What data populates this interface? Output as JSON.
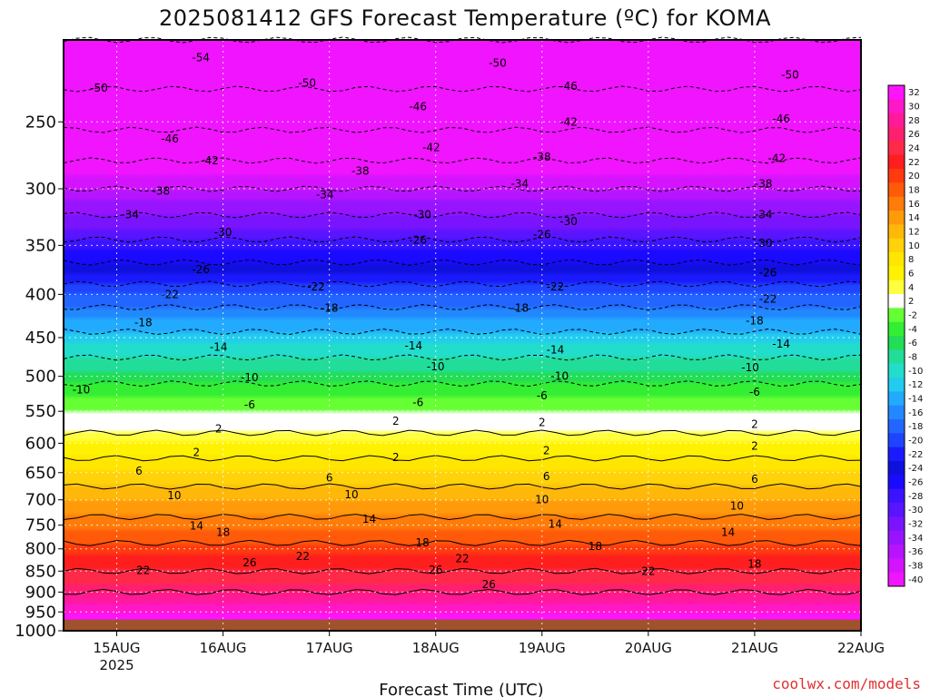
{
  "title": "2025081412 GFS Forecast Temperature (ºC) for KOMA",
  "credit": "coolwx.com/models",
  "chart_data": {
    "type": "heatmap",
    "xlabel": "Forecast Time (UTC)",
    "ylabel": "",
    "x_start": "2025-08-14 12Z",
    "x_end": "2025-08-22 00Z",
    "x_ticks": [
      {
        "label": "15AUG",
        "sub": "2025",
        "t": "2025-08-15 00Z"
      },
      {
        "label": "16AUG",
        "sub": "",
        "t": "2025-08-16 00Z"
      },
      {
        "label": "17AUG",
        "sub": "",
        "t": "2025-08-17 00Z"
      },
      {
        "label": "18AUG",
        "sub": "",
        "t": "2025-08-18 00Z"
      },
      {
        "label": "19AUG",
        "sub": "",
        "t": "2025-08-19 00Z"
      },
      {
        "label": "20AUG",
        "sub": "",
        "t": "2025-08-20 00Z"
      },
      {
        "label": "21AUG",
        "sub": "",
        "t": "2025-08-21 00Z"
      },
      {
        "label": "22AUG",
        "sub": "",
        "t": "2025-08-22 00Z"
      }
    ],
    "y_ticks_hpa": [
      "250",
      "300",
      "350",
      "400",
      "450",
      "500",
      "550",
      "600",
      "650",
      "700",
      "750",
      "800",
      "850",
      "900",
      "950",
      "1000"
    ],
    "ylim_hpa": [
      1000,
      200
    ],
    "ground_level_hpa": 970,
    "profile_hpa": [
      200,
      250,
      300,
      350,
      400,
      450,
      500,
      550,
      600,
      650,
      700,
      750,
      800,
      850,
      900,
      950,
      970
    ],
    "profile_temp_c": [
      -54,
      -47,
      -38,
      -29,
      -20,
      -13,
      -7,
      -2,
      4,
      8,
      12,
      15,
      19,
      22,
      26,
      30,
      32
    ],
    "colorbar": {
      "levels": [
        "32",
        "30",
        "28",
        "26",
        "24",
        "22",
        "20",
        "18",
        "16",
        "14",
        "12",
        "10",
        "8",
        "6",
        "4",
        "2",
        "-2",
        "-4",
        "-6",
        "-8",
        "-10",
        "-12",
        "-14",
        "-16",
        "-18",
        "-20",
        "-22",
        "-24",
        "-26",
        "-28",
        "-30",
        "-32",
        "-34",
        "-36",
        "-38",
        "-40"
      ],
      "colors": [
        "#ff14ff",
        "#ff17c8",
        "#ff1a9a",
        "#ff1f6f",
        "#ff2a48",
        "#ff1e1e",
        "#ff3a0f",
        "#ff5a0a",
        "#ff7b0a",
        "#ff9a0a",
        "#ffb80a",
        "#ffd20a",
        "#ffe600",
        "#fff200",
        "#ffff40",
        "#ffffff",
        "#66ff33",
        "#33ee33",
        "#22dd55",
        "#22dd99",
        "#22ddcc",
        "#22ccee",
        "#22aaff",
        "#2288ff",
        "#2266ff",
        "#1f44ff",
        "#1a1aff",
        "#1010dd",
        "#1a0aff",
        "#3b14ff",
        "#5a14ff",
        "#7a14ff",
        "#9814ff",
        "#b614ff",
        "#d414ff",
        "#f014ff"
      ]
    },
    "contour_labels": [
      {
        "text": "-54",
        "t": "2025-08-15 19Z",
        "p": 210
      },
      {
        "text": "-50",
        "t": "2025-08-14 20Z",
        "p": 228
      },
      {
        "text": "-50",
        "t": "2025-08-16 19Z",
        "p": 225
      },
      {
        "text": "-50",
        "t": "2025-08-18 14Z",
        "p": 213
      },
      {
        "text": "-50",
        "t": "2025-08-21 08Z",
        "p": 220
      },
      {
        "text": "-46",
        "t": "2025-08-17 20Z",
        "p": 240
      },
      {
        "text": "-46",
        "t": "2025-08-15 12Z",
        "p": 262
      },
      {
        "text": "-46",
        "t": "2025-08-19 06Z",
        "p": 227
      },
      {
        "text": "-46",
        "t": "2025-08-21 06Z",
        "p": 248
      },
      {
        "text": "-42",
        "t": "2025-08-15 21Z",
        "p": 278
      },
      {
        "text": "-42",
        "t": "2025-08-17 23Z",
        "p": 268
      },
      {
        "text": "-42",
        "t": "2025-08-19 06Z",
        "p": 250
      },
      {
        "text": "-42",
        "t": "2025-08-21 05Z",
        "p": 276
      },
      {
        "text": "-38",
        "t": "2025-08-15 10Z",
        "p": 302
      },
      {
        "text": "-38",
        "t": "2025-08-17 07Z",
        "p": 286
      },
      {
        "text": "-38",
        "t": "2025-08-19 00Z",
        "p": 275
      },
      {
        "text": "-38",
        "t": "2025-08-21 02Z",
        "p": 296
      },
      {
        "text": "-34",
        "t": "2025-08-15 03Z",
        "p": 322
      },
      {
        "text": "-34",
        "t": "2025-08-16 23Z",
        "p": 305
      },
      {
        "text": "-34",
        "t": "2025-08-18 19Z",
        "p": 296
      },
      {
        "text": "-34",
        "t": "2025-08-21 02Z",
        "p": 322
      },
      {
        "text": "-30",
        "t": "2025-08-16 00Z",
        "p": 338
      },
      {
        "text": "-30",
        "t": "2025-08-17 21Z",
        "p": 322
      },
      {
        "text": "-30",
        "t": "2025-08-19 06Z",
        "p": 328
      },
      {
        "text": "-30",
        "t": "2025-08-21 02Z",
        "p": 348
      },
      {
        "text": "-26",
        "t": "2025-08-15 19Z",
        "p": 374
      },
      {
        "text": "-26",
        "t": "2025-08-17 20Z",
        "p": 345
      },
      {
        "text": "-26",
        "t": "2025-08-19 00Z",
        "p": 340
      },
      {
        "text": "-26",
        "t": "2025-08-21 03Z",
        "p": 377
      },
      {
        "text": "-22",
        "t": "2025-08-15 12Z",
        "p": 400
      },
      {
        "text": "-22",
        "t": "2025-08-16 21Z",
        "p": 392
      },
      {
        "text": "-22",
        "t": "2025-08-19 03Z",
        "p": 392
      },
      {
        "text": "-22",
        "t": "2025-08-21 03Z",
        "p": 405
      },
      {
        "text": "-18",
        "t": "2025-08-15 06Z",
        "p": 432
      },
      {
        "text": "-18",
        "t": "2025-08-16 24Z",
        "p": 415
      },
      {
        "text": "-18",
        "t": "2025-08-18 19Z",
        "p": 415
      },
      {
        "text": "-18",
        "t": "2025-08-21 00Z",
        "p": 430
      },
      {
        "text": "-14",
        "t": "2025-08-15 23Z",
        "p": 462
      },
      {
        "text": "-14",
        "t": "2025-08-17 19Z",
        "p": 460
      },
      {
        "text": "-14",
        "t": "2025-08-19 03Z",
        "p": 465
      },
      {
        "text": "-14",
        "t": "2025-08-21 06Z",
        "p": 458
      },
      {
        "text": "-10",
        "t": "2025-08-14 16Z",
        "p": 519
      },
      {
        "text": "-10",
        "t": "2025-08-16 06Z",
        "p": 502
      },
      {
        "text": "-10",
        "t": "2025-08-17 24Z",
        "p": 487
      },
      {
        "text": "-10",
        "t": "2025-08-19 04Z",
        "p": 500
      },
      {
        "text": "-10",
        "t": "2025-08-20 23Z",
        "p": 488
      },
      {
        "text": "-6",
        "t": "2025-08-16 06Z",
        "p": 540
      },
      {
        "text": "-6",
        "t": "2025-08-17 20Z",
        "p": 537
      },
      {
        "text": "-6",
        "t": "2025-08-19 00Z",
        "p": 527
      },
      {
        "text": "-6",
        "t": "2025-08-21 00Z",
        "p": 522
      },
      {
        "text": "2",
        "t": "2025-08-15 23Z",
        "p": 577
      },
      {
        "text": "2",
        "t": "2025-08-17 15Z",
        "p": 565
      },
      {
        "text": "2",
        "t": "2025-08-18 24Z",
        "p": 567
      },
      {
        "text": "2",
        "t": "2025-08-21 00Z",
        "p": 570
      },
      {
        "text": "2",
        "t": "2025-08-15 18Z",
        "p": 615
      },
      {
        "text": "2",
        "t": "2025-08-17 15Z",
        "p": 624
      },
      {
        "text": "2",
        "t": "2025-08-19 01Z",
        "p": 612
      },
      {
        "text": "2",
        "t": "2025-08-21 00Z",
        "p": 605
      },
      {
        "text": "6",
        "t": "2025-08-15 05Z",
        "p": 647
      },
      {
        "text": "6",
        "t": "2025-08-17 00Z",
        "p": 659
      },
      {
        "text": "6",
        "t": "2025-08-19 01Z",
        "p": 657
      },
      {
        "text": "6",
        "t": "2025-08-21 00Z",
        "p": 662
      },
      {
        "text": "10",
        "t": "2025-08-15 13Z",
        "p": 692
      },
      {
        "text": "10",
        "t": "2025-08-17 05Z",
        "p": 690
      },
      {
        "text": "10",
        "t": "2025-08-18 24Z",
        "p": 700
      },
      {
        "text": "10",
        "t": "2025-08-20 20Z",
        "p": 712
      },
      {
        "text": "14",
        "t": "2025-08-15 18Z",
        "p": 752
      },
      {
        "text": "14",
        "t": "2025-08-17 09Z",
        "p": 738
      },
      {
        "text": "14",
        "t": "2025-08-19 03Z",
        "p": 748
      },
      {
        "text": "14",
        "t": "2025-08-20 18Z",
        "p": 765
      },
      {
        "text": "18",
        "t": "2025-08-16 00Z",
        "p": 765
      },
      {
        "text": "18",
        "t": "2025-08-17 21Z",
        "p": 787
      },
      {
        "text": "18",
        "t": "2025-08-19 12Z",
        "p": 795
      },
      {
        "text": "18",
        "t": "2025-08-21 00Z",
        "p": 834
      },
      {
        "text": "22",
        "t": "2025-08-15 06Z",
        "p": 848
      },
      {
        "text": "22",
        "t": "2025-08-16 18Z",
        "p": 816
      },
      {
        "text": "22",
        "t": "2025-08-18 06Z",
        "p": 822
      },
      {
        "text": "22",
        "t": "2025-08-20 00Z",
        "p": 850
      },
      {
        "text": "26",
        "t": "2025-08-16 06Z",
        "p": 831
      },
      {
        "text": "26",
        "t": "2025-08-18 00Z",
        "p": 847
      },
      {
        "text": "26",
        "t": "2025-08-18 12Z",
        "p": 882
      }
    ]
  }
}
